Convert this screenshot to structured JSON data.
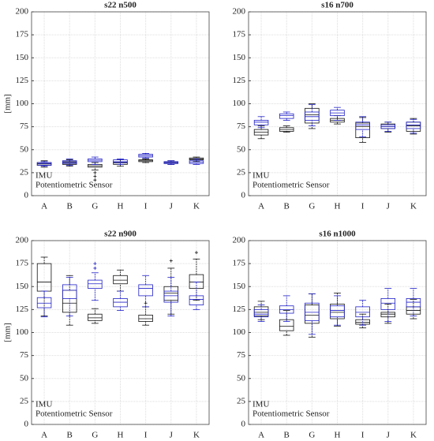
{
  "chart_data": [
    {
      "type": "box",
      "title": "s22 n500",
      "ylabel": "[mm]",
      "categories": [
        "A",
        "B",
        "G",
        "H",
        "I",
        "J",
        "K"
      ],
      "ylim": [
        0,
        200
      ],
      "yticks": [
        0,
        25,
        50,
        75,
        100,
        125,
        150,
        175,
        200
      ],
      "grid": true,
      "legend": "lower left",
      "series": [
        {
          "name": "IMU",
          "color": "#111111",
          "values": [
            {
              "min": 31,
              "q1": 33,
              "median": 34.5,
              "q3": 36,
              "max": 38
            },
            {
              "min": 32,
              "q1": 34,
              "median": 35.5,
              "q3": 37,
              "max": 39
            },
            {
              "min": 28,
              "q1": 31,
              "median": 32.5,
              "q3": 34,
              "max": 36,
              "outliers": [
                25,
                21,
                17
              ]
            },
            {
              "min": 32,
              "q1": 34,
              "median": 35.5,
              "q3": 37,
              "max": 39
            },
            {
              "min": 36,
              "q1": 37,
              "median": 38,
              "q3": 39,
              "max": 40
            },
            {
              "min": 34,
              "q1": 35,
              "median": 36,
              "q3": 37,
              "max": 38
            },
            {
              "min": 37,
              "q1": 39,
              "median": 40,
              "q3": 41,
              "max": 42
            }
          ]
        },
        {
          "name": "Potentiometric Sensor",
          "color": "#1f1fc8",
          "values": [
            {
              "min": 32,
              "q1": 33,
              "median": 35,
              "q3": 36,
              "max": 37
            },
            {
              "min": 33,
              "q1": 35,
              "median": 36.5,
              "q3": 38,
              "max": 40
            },
            {
              "min": 34,
              "q1": 37,
              "median": 38.5,
              "q3": 40,
              "max": 42
            },
            {
              "min": 34,
              "q1": 36,
              "median": 37,
              "q3": 39,
              "max": 40
            },
            {
              "min": 41,
              "q1": 42,
              "median": 43.5,
              "q3": 45,
              "max": 46
            },
            {
              "min": 34,
              "q1": 35,
              "median": 36,
              "q3": 37,
              "max": 38
            },
            {
              "min": 34,
              "q1": 35,
              "median": 36.5,
              "q3": 38,
              "max": 40
            }
          ]
        }
      ]
    },
    {
      "type": "box",
      "title": "s16 n700",
      "categories": [
        "A",
        "B",
        "G",
        "H",
        "I",
        "J",
        "K"
      ],
      "ylim": [
        0,
        200
      ],
      "yticks": [
        0,
        25,
        50,
        75,
        100,
        125,
        150,
        175,
        200
      ],
      "grid": true,
      "legend": "lower left",
      "series": [
        {
          "name": "IMU",
          "color": "#111111",
          "values": [
            {
              "min": 62,
              "q1": 66,
              "median": 69,
              "q3": 72,
              "max": 76
            },
            {
              "min": 69,
              "q1": 70,
              "median": 72,
              "q3": 74,
              "max": 76
            },
            {
              "min": 73,
              "q1": 79,
              "median": 88,
              "q3": 95,
              "max": 100
            },
            {
              "min": 78,
              "q1": 80,
              "median": 82,
              "q3": 84,
              "max": 87
            },
            {
              "min": 58,
              "q1": 63,
              "median": 75,
              "q3": 79,
              "max": 85
            },
            {
              "min": 69,
              "q1": 73,
              "median": 75,
              "q3": 78,
              "max": 80
            },
            {
              "min": 67,
              "q1": 70,
              "median": 76,
              "q3": 80,
              "max": 84
            }
          ]
        },
        {
          "name": "Potentiometric Sensor",
          "color": "#1f1fc8",
          "values": [
            {
              "min": 74,
              "q1": 77,
              "median": 80,
              "q3": 82,
              "max": 86
            },
            {
              "min": 82,
              "q1": 84,
              "median": 87,
              "q3": 89,
              "max": 91
            },
            {
              "min": 76,
              "q1": 82,
              "median": 86,
              "q3": 91,
              "max": 99
            },
            {
              "min": 82,
              "q1": 87,
              "median": 90,
              "q3": 93,
              "max": 96
            },
            {
              "min": 64,
              "q1": 72,
              "median": 77,
              "q3": 80,
              "max": 86
            },
            {
              "min": 70,
              "q1": 73,
              "median": 75,
              "q3": 77,
              "max": 80
            },
            {
              "min": 68,
              "q1": 73,
              "median": 77,
              "q3": 80,
              "max": 83
            }
          ]
        }
      ]
    },
    {
      "type": "box",
      "title": "s22 n900",
      "ylabel": "[mm]",
      "categories": [
        "A",
        "B",
        "G",
        "H",
        "I",
        "J",
        "K"
      ],
      "ylim": [
        0,
        200
      ],
      "yticks": [
        0,
        25,
        50,
        75,
        100,
        125,
        150,
        175,
        200
      ],
      "grid": true,
      "legend": "lower left",
      "series": [
        {
          "name": "IMU",
          "color": "#111111",
          "values": [
            {
              "min": 118,
              "q1": 145,
              "median": 155,
              "q3": 175,
              "max": 182
            },
            {
              "min": 108,
              "q1": 122,
              "median": 132,
              "q3": 146,
              "max": 162
            },
            {
              "min": 110,
              "q1": 113,
              "median": 116,
              "q3": 120,
              "max": 126
            },
            {
              "min": 145,
              "q1": 153,
              "median": 157,
              "q3": 162,
              "max": 168
            },
            {
              "min": 108,
              "q1": 112,
              "median": 115,
              "q3": 119,
              "max": 128,
              "outliers": [
                132
              ]
            },
            {
              "min": 120,
              "q1": 135,
              "median": 143,
              "q3": 150,
              "max": 170,
              "outliers": [
                178
              ]
            },
            {
              "min": 135,
              "q1": 148,
              "median": 155,
              "q3": 163,
              "max": 180,
              "outliers": [
                187
              ]
            }
          ]
        },
        {
          "name": "Potentiometric Sensor",
          "color": "#1f1fc8",
          "values": [
            {
              "min": 117,
              "q1": 127,
              "median": 132,
              "q3": 138,
              "max": 145
            },
            {
              "min": 118,
              "q1": 137,
              "median": 146,
              "q3": 152,
              "max": 160
            },
            {
              "min": 135,
              "q1": 148,
              "median": 153,
              "q3": 157,
              "max": 165,
              "outliers": [
                170,
                175
              ]
            },
            {
              "min": 124,
              "q1": 128,
              "median": 133,
              "q3": 137,
              "max": 145
            },
            {
              "min": 128,
              "q1": 140,
              "median": 148,
              "q3": 152,
              "max": 162
            },
            {
              "min": 118,
              "q1": 133,
              "median": 140,
              "q3": 145,
              "max": 160
            },
            {
              "min": 125,
              "q1": 130,
              "median": 136,
              "q3": 140,
              "max": 155
            }
          ]
        }
      ]
    },
    {
      "type": "box",
      "title": "s16 n1000",
      "categories": [
        "A",
        "B",
        "G",
        "H",
        "I",
        "J",
        "K"
      ],
      "ylim": [
        0,
        200
      ],
      "yticks": [
        0,
        25,
        50,
        75,
        100,
        125,
        150,
        175,
        200
      ],
      "grid": true,
      "legend": "lower left",
      "series": [
        {
          "name": "IMU",
          "color": "#111111",
          "values": [
            {
              "min": 114,
              "q1": 118,
              "median": 122,
              "q3": 128,
              "max": 134
            },
            {
              "min": 97,
              "q1": 102,
              "median": 107,
              "q3": 114,
              "max": 124
            },
            {
              "min": 95,
              "q1": 110,
              "median": 119,
              "q3": 130,
              "max": 142
            },
            {
              "min": 107,
              "q1": 115,
              "median": 122,
              "q3": 131,
              "max": 143
            },
            {
              "min": 105,
              "q1": 109,
              "median": 111,
              "q3": 114,
              "max": 120
            },
            {
              "min": 110,
              "q1": 117,
              "median": 120,
              "q3": 122,
              "max": 131
            },
            {
              "min": 115,
              "q1": 120,
              "median": 124,
              "q3": 128,
              "max": 136
            }
          ]
        },
        {
          "name": "Potentiometric Sensor",
          "color": "#1f1fc8",
          "values": [
            {
              "min": 112,
              "q1": 117,
              "median": 120,
              "q3": 125,
              "max": 130
            },
            {
              "min": 112,
              "q1": 121,
              "median": 125,
              "q3": 129,
              "max": 140
            },
            {
              "min": 98,
              "q1": 113,
              "median": 122,
              "q3": 132,
              "max": 142
            },
            {
              "min": 108,
              "q1": 117,
              "median": 124,
              "q3": 129,
              "max": 140
            },
            {
              "min": 108,
              "q1": 117,
              "median": 122,
              "q3": 128,
              "max": 135
            },
            {
              "min": 112,
              "q1": 125,
              "median": 132,
              "q3": 137,
              "max": 148
            },
            {
              "min": 118,
              "q1": 128,
              "median": 133,
              "q3": 137,
              "max": 148
            }
          ]
        }
      ]
    }
  ]
}
